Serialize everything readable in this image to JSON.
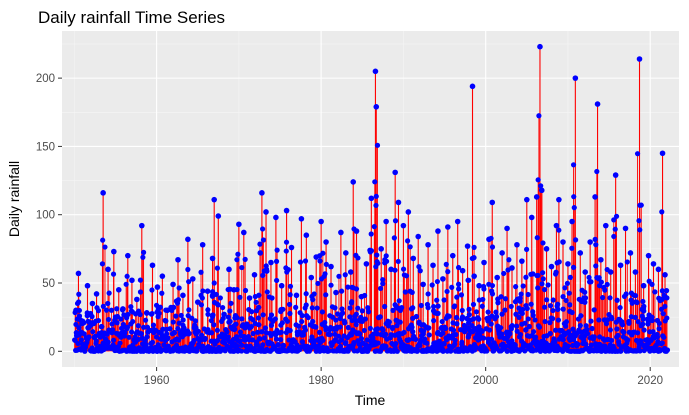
{
  "chart_data": {
    "type": "line",
    "title": "Daily rainfall Time Series",
    "xlabel": "Time",
    "ylabel": "Daily rainfall",
    "xlim": [
      1948.5,
      2023.5
    ],
    "ylim": [
      -11.5,
      234.5
    ],
    "x_ticks": [
      1960,
      1980,
      2000,
      2020
    ],
    "y_ticks": [
      0,
      50,
      100,
      150,
      200
    ],
    "x_tick_labels": [
      "1960",
      "1980",
      "2000",
      "2020"
    ],
    "y_tick_labels": [
      "0",
      "50",
      "100",
      "150",
      "200"
    ],
    "grid": true,
    "line_color": "#ff0000",
    "point_color": "#0000ff",
    "panel_color": "#ebebeb",
    "grid_color": "#ffffff",
    "series": [
      {
        "name": "Daily rainfall",
        "x": [
          1950.2,
          1950.5,
          1951.0,
          1951.6,
          1952.2,
          1952.7,
          1953.3,
          1953.5,
          1954.1,
          1954.8,
          1955.4,
          1955.9,
          1956.5,
          1957.0,
          1957.6,
          1958.2,
          1958.8,
          1959.5,
          1960.1,
          1960.7,
          1961.3,
          1962.0,
          1962.6,
          1963.2,
          1963.8,
          1964.4,
          1965.0,
          1965.6,
          1966.2,
          1966.8,
          1967.0,
          1967.5,
          1968.2,
          1968.8,
          1969.4,
          1970.0,
          1970.6,
          1971.3,
          1971.9,
          1972.6,
          1972.8,
          1973.3,
          1973.9,
          1974.5,
          1975.2,
          1975.8,
          1976.4,
          1977.0,
          1977.6,
          1978.2,
          1978.8,
          1979.4,
          1980.0,
          1980.6,
          1981.2,
          1981.8,
          1982.4,
          1983.0,
          1983.6,
          1983.9,
          1984.3,
          1984.9,
          1985.5,
          1986.1,
          1986.6,
          1986.7,
          1987.3,
          1987.9,
          1988.5,
          1989.0,
          1989.4,
          1990.0,
          1990.6,
          1991.2,
          1991.8,
          1992.4,
          1993.0,
          1993.6,
          1994.2,
          1994.8,
          1995.4,
          1996.0,
          1996.6,
          1997.2,
          1997.8,
          1998.4,
          1998.6,
          1999.2,
          1999.8,
          2000.4,
          2000.8,
          2001.4,
          2002.0,
          2002.6,
          2003.2,
          2003.8,
          2004.4,
          2005.0,
          2005.6,
          2006.2,
          2006.6,
          2006.8,
          2007.4,
          2008.0,
          2008.6,
          2008.9,
          2009.4,
          2010.0,
          2010.5,
          2010.9,
          2011.5,
          2012.1,
          2012.7,
          2013.3,
          2013.6,
          2014.0,
          2014.6,
          2015.2,
          2015.8,
          2016.4,
          2017.0,
          2017.6,
          2018.2,
          2018.7,
          2019.2,
          2019.8,
          2020.4,
          2021.0,
          2021.5,
          2021.8
        ],
        "values": [
          30,
          57,
          22,
          48,
          35,
          42,
          18,
          116,
          60,
          73,
          45,
          31,
          70,
          52,
          38,
          92,
          28,
          63,
          47,
          55,
          30,
          49,
          67,
          41,
          82,
          53,
          36,
          78,
          44,
          68,
          111,
          99,
          27,
          60,
          45,
          93,
          87,
          39,
          56,
          72,
          116,
          102,
          65,
          98,
          48,
          103,
          76,
          41,
          97,
          85,
          54,
          69,
          95,
          80,
          62,
          43,
          87,
          72,
          58,
          124,
          88,
          40,
          64,
          112,
          205,
          179,
          75,
          95,
          60,
          131,
          109,
          92,
          102,
          68,
          84,
          49,
          78,
          63,
          88,
          53,
          91,
          70,
          95,
          59,
          77,
          194,
          55,
          48,
          65,
          82,
          109,
          54,
          72,
          90,
          61,
          78,
          66,
          111,
          98,
          113,
          223,
          118,
          75,
          62,
          92,
          111,
          80,
          64,
          95,
          200,
          72,
          58,
          80,
          113,
          181,
          67,
          92,
          58,
          129,
          63,
          90,
          72,
          58,
          214,
          48,
          70,
          64,
          60,
          145,
          56
        ],
        "baseline_max": 25
      }
    ]
  }
}
